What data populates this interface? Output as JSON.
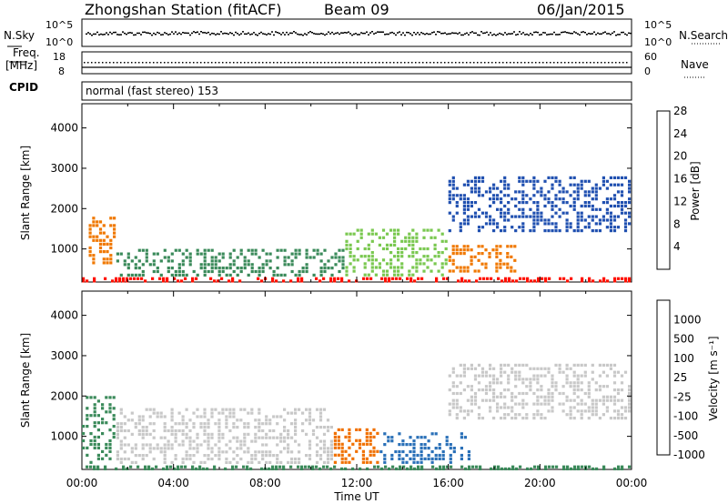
{
  "header": {
    "title": "Zhongshan Station (fitACF)",
    "beam": "Beam 09",
    "date": "06/Jan/2015"
  },
  "side_labels": {
    "nsky": "N.Sky",
    "nsearch": "N.Search",
    "freq_line1": "Freq.",
    "freq_line2": "[MHz]",
    "nave": "Nave",
    "cpid": "CPID"
  },
  "cpid_text": "normal (fast stereo) 153",
  "noise_axis": {
    "left_top": "10^5",
    "left_bottom": "10^0",
    "right_top": "10^5",
    "right_bottom": "10^0"
  },
  "freq_axis": {
    "left_top": "18",
    "left_bottom": "8",
    "right_top": "60",
    "right_bottom": "0"
  },
  "chart_data": [
    {
      "type": "heatmap",
      "name": "power",
      "xlabel": "",
      "ylabel": "Slant Range [km]",
      "x_ticks": [
        "00:00",
        "04:00",
        "08:00",
        "12:00",
        "16:00",
        "20:00",
        "00:00"
      ],
      "xlim_hours": [
        0,
        24
      ],
      "ylim": [
        180,
        4600
      ],
      "y_ticks": [
        1000,
        2000,
        3000,
        4000
      ],
      "colorbar": {
        "label": "Power [dB]",
        "ticks": [
          4,
          8,
          12,
          16,
          20,
          24,
          28
        ],
        "colors": [
          "#1010ff",
          "#2050b0",
          "#3a8a5a",
          "#7ac850",
          "#f0c800",
          "#f07800",
          "#ff1000"
        ]
      },
      "features": [
        {
          "hours": [
            0.0,
            24.0
          ],
          "range_km": [
            180,
            300
          ],
          "value_db": 28
        },
        {
          "hours": [
            0.3,
            1.5
          ],
          "range_km": [
            600,
            1800
          ],
          "value_db": 26
        },
        {
          "hours": [
            1.5,
            11.5
          ],
          "range_km": [
            300,
            1000
          ],
          "value_db": 12
        },
        {
          "hours": [
            11.5,
            16.0
          ],
          "range_km": [
            300,
            1500
          ],
          "value_db": 16
        },
        {
          "hours": [
            16.0,
            19.0
          ],
          "range_km": [
            400,
            1100
          ],
          "value_db": 24
        },
        {
          "hours": [
            16.0,
            24.0
          ],
          "range_km": [
            1400,
            2800
          ],
          "value_db": 8
        }
      ]
    },
    {
      "type": "heatmap",
      "name": "velocity",
      "xlabel": "Time UT",
      "ylabel": "Slant Range [km]",
      "x_ticks": [
        "00:00",
        "04:00",
        "08:00",
        "12:00",
        "16:00",
        "20:00",
        "00:00"
      ],
      "xlim_hours": [
        0,
        24
      ],
      "ylim": [
        180,
        4600
      ],
      "y_ticks": [
        1000,
        2000,
        3000,
        4000
      ],
      "colorbar": {
        "label": "Velocity [m s⁻¹]",
        "ticks": [
          "1000",
          "500",
          "100",
          "25",
          "-25",
          "-100",
          "-500",
          "-1000"
        ],
        "colors": [
          "#1530c8",
          "#2a70b8",
          "#3a8a5a",
          "#55c040",
          "#c8c8c8",
          "#f0a020",
          "#f07000",
          "#ff1010"
        ]
      },
      "features": [
        {
          "hours": [
            0.0,
            24.0
          ],
          "range_km": [
            180,
            280
          ],
          "value": 100
        },
        {
          "hours": [
            0.0,
            1.5
          ],
          "range_km": [
            300,
            2000
          ],
          "value": 100
        },
        {
          "hours": [
            1.5,
            11.0
          ],
          "range_km": [
            300,
            1700
          ],
          "value": 0
        },
        {
          "hours": [
            11.0,
            13.0
          ],
          "range_km": [
            300,
            1200
          ],
          "value": -500
        },
        {
          "hours": [
            13.0,
            17.0
          ],
          "range_km": [
            300,
            1100
          ],
          "value": 500
        },
        {
          "hours": [
            16.0,
            24.0
          ],
          "range_km": [
            1400,
            2800
          ],
          "value": 0
        }
      ]
    }
  ]
}
